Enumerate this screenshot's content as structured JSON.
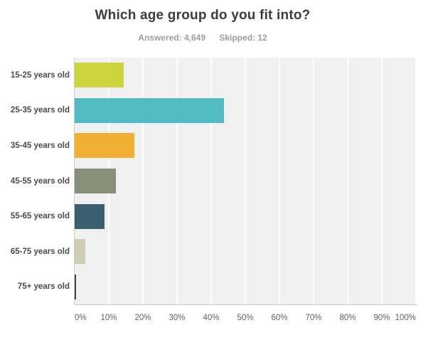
{
  "chart_data": {
    "type": "bar",
    "orientation": "horizontal",
    "title": "Which age group do you fit into?",
    "subtitle": {
      "answered": "Answered: 4,649",
      "skipped": "Skipped: 12"
    },
    "categories": [
      "15-25 years old",
      "25-35 years old",
      "35-45 years old",
      "45-55 years old",
      "55-65 years old",
      "65-75 years old",
      "75+ years old"
    ],
    "values": [
      14.4,
      43.8,
      17.4,
      12.1,
      8.7,
      3.2,
      0.5
    ],
    "unit": "%",
    "bar_colors": [
      "#ccd53e",
      "#52bbc1",
      "#f1af33",
      "#878f7b",
      "#3a5f6f",
      "#cfccb9",
      "#42463e"
    ],
    "x_ticks": [
      "0%",
      "10%",
      "20%",
      "30%",
      "40%",
      "50%",
      "60%",
      "70%",
      "80%",
      "90%",
      "100%"
    ],
    "xlim": [
      0,
      100
    ],
    "grid": "vertical",
    "gridline_color": "#ffffff",
    "plot_bg": "#f0f0f0",
    "axis_line_color": "#cccccc",
    "legend": "none",
    "styles": {
      "title_color": "#3d3d3d",
      "subtitle_color": "#9d9d9d",
      "category_label_color": "#4b4b4b",
      "tick_label_color": "#5f5f5f"
    }
  }
}
